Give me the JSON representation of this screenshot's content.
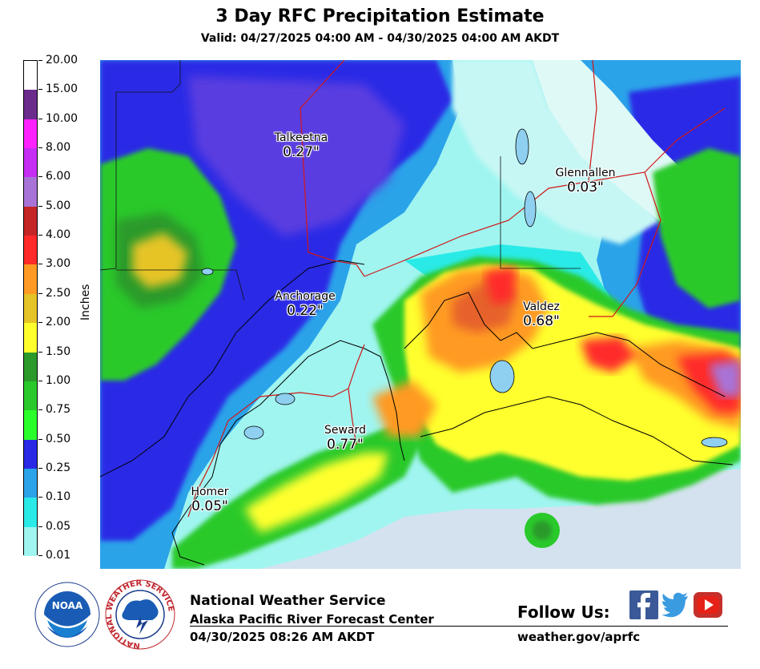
{
  "header": {
    "title": "3 Day RFC Precipitation Estimate",
    "valid": "Valid: 04/27/2025 04:00 AM - 04/30/2025 04:00 AM AKDT"
  },
  "legend": {
    "units": "Inches",
    "labels": [
      "20.00",
      "15.00",
      "10.00",
      "8.00",
      "6.00",
      "5.00",
      "4.00",
      "3.00",
      "2.50",
      "2.00",
      "1.50",
      "1.00",
      "0.75",
      "0.50",
      "0.25",
      "0.10",
      "0.05",
      "0.01"
    ],
    "colors": [
      "#ffffff",
      "#6b2b8c",
      "#ff22ff",
      "#c62ef4",
      "#a873d6",
      "#c42525",
      "#ff2a2a",
      "#ff9a24",
      "#e6c427",
      "#ffff2e",
      "#2b9a2b",
      "#2ac92b",
      "#2bff2b",
      "#2a2ae6",
      "#2ba3e9",
      "#2aeae7",
      "#a0f5f0"
    ]
  },
  "cities": [
    {
      "name": "Talkeetna",
      "value": "0.27\""
    },
    {
      "name": "Glennallen",
      "value": "0.03\""
    },
    {
      "name": "Anchorage",
      "value": "0.22\""
    },
    {
      "name": "Valdez",
      "value": "0.68\""
    },
    {
      "name": "Seward",
      "value": "0.77\""
    },
    {
      "name": "Homer",
      "value": "0.05\""
    }
  ],
  "footer": {
    "org": "National Weather Service",
    "center": "Alaska Pacific River Forecast Center",
    "timestamp": "04/30/2025 08:26 AM AKDT",
    "follow": "Follow Us:",
    "url": "weather.gov/aprfc"
  },
  "logos": {
    "noaa": "NOAA",
    "nws_ring": "NATIONAL WEATHER SERVICE"
  },
  "social": [
    "facebook-icon",
    "twitter-icon",
    "youtube-icon"
  ]
}
